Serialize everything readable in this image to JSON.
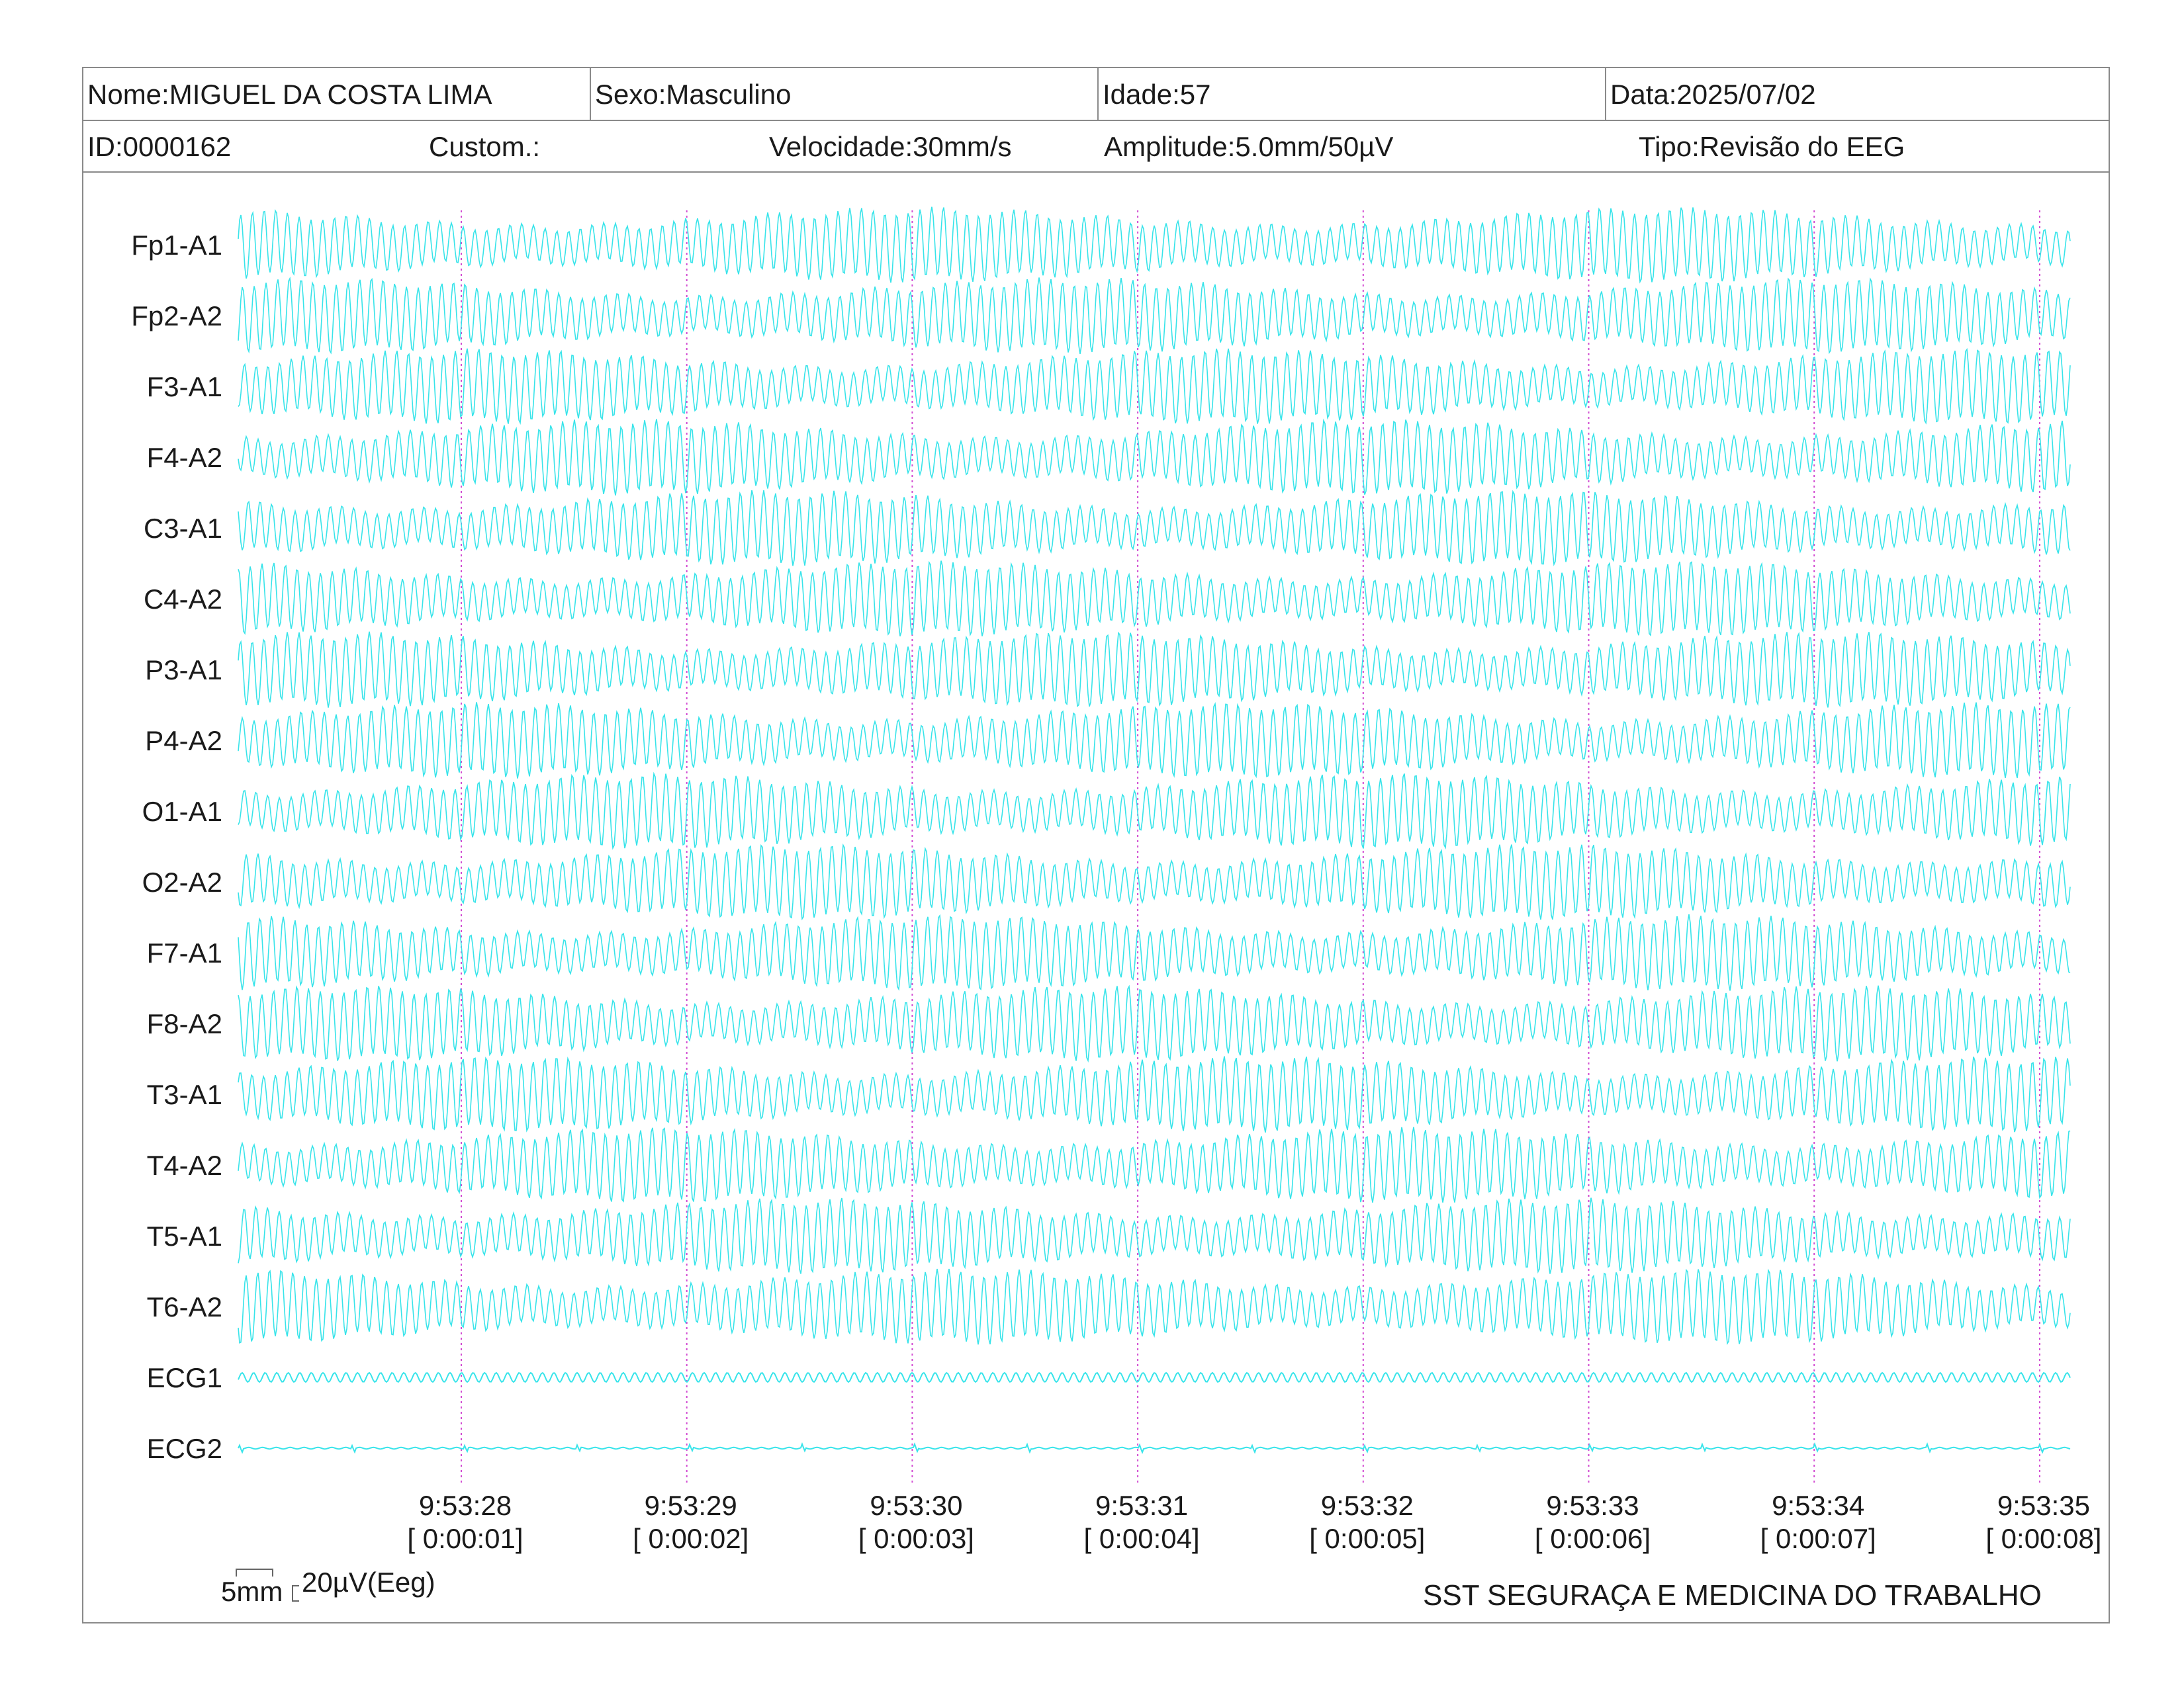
{
  "header": {
    "nome": "Nome:MIGUEL DA COSTA LIMA",
    "sexo": "Sexo:Masculino",
    "idade": "Idade:57",
    "data": "Data:2025/07/02",
    "id": "ID:0000162",
    "custom": "Custom.:",
    "velocidade": "Velocidade:30mm/s",
    "amplitude": "Amplitude:5.0mm/50µV",
    "tipo": "Tipo:Revisão do EEG"
  },
  "channels": [
    "Fp1-A1",
    "Fp2-A2",
    "F3-A1",
    "F4-A2",
    "C3-A1",
    "C4-A2",
    "P3-A1",
    "P4-A2",
    "O1-A1",
    "O2-A2",
    "F7-A1",
    "F8-A2",
    "T3-A1",
    "T4-A2",
    "T5-A1",
    "T6-A2",
    "ECG1",
    "ECG2"
  ],
  "time_marks": [
    {
      "clock": "9:53:28",
      "elapsed": "[ 0:00:01]"
    },
    {
      "clock": "9:53:29",
      "elapsed": "[ 0:00:02]"
    },
    {
      "clock": "9:53:30",
      "elapsed": "[ 0:00:03]"
    },
    {
      "clock": "9:53:31",
      "elapsed": "[ 0:00:04]"
    },
    {
      "clock": "9:53:32",
      "elapsed": "[ 0:00:05]"
    },
    {
      "clock": "9:53:33",
      "elapsed": "[ 0:00:06]"
    },
    {
      "clock": "9:53:34",
      "elapsed": "[ 0:00:07]"
    },
    {
      "clock": "9:53:35",
      "elapsed": "[ 0:00:08]"
    }
  ],
  "scale": {
    "time": "5mm",
    "amplitude": "20µV(Eeg)"
  },
  "footer": {
    "company": "SST SEGURAÇA E MEDICINA DO TRABALHO"
  },
  "colors": {
    "trace": "#38e4ea",
    "marker": "#d24bd2",
    "border": "#8a8a8a"
  }
}
